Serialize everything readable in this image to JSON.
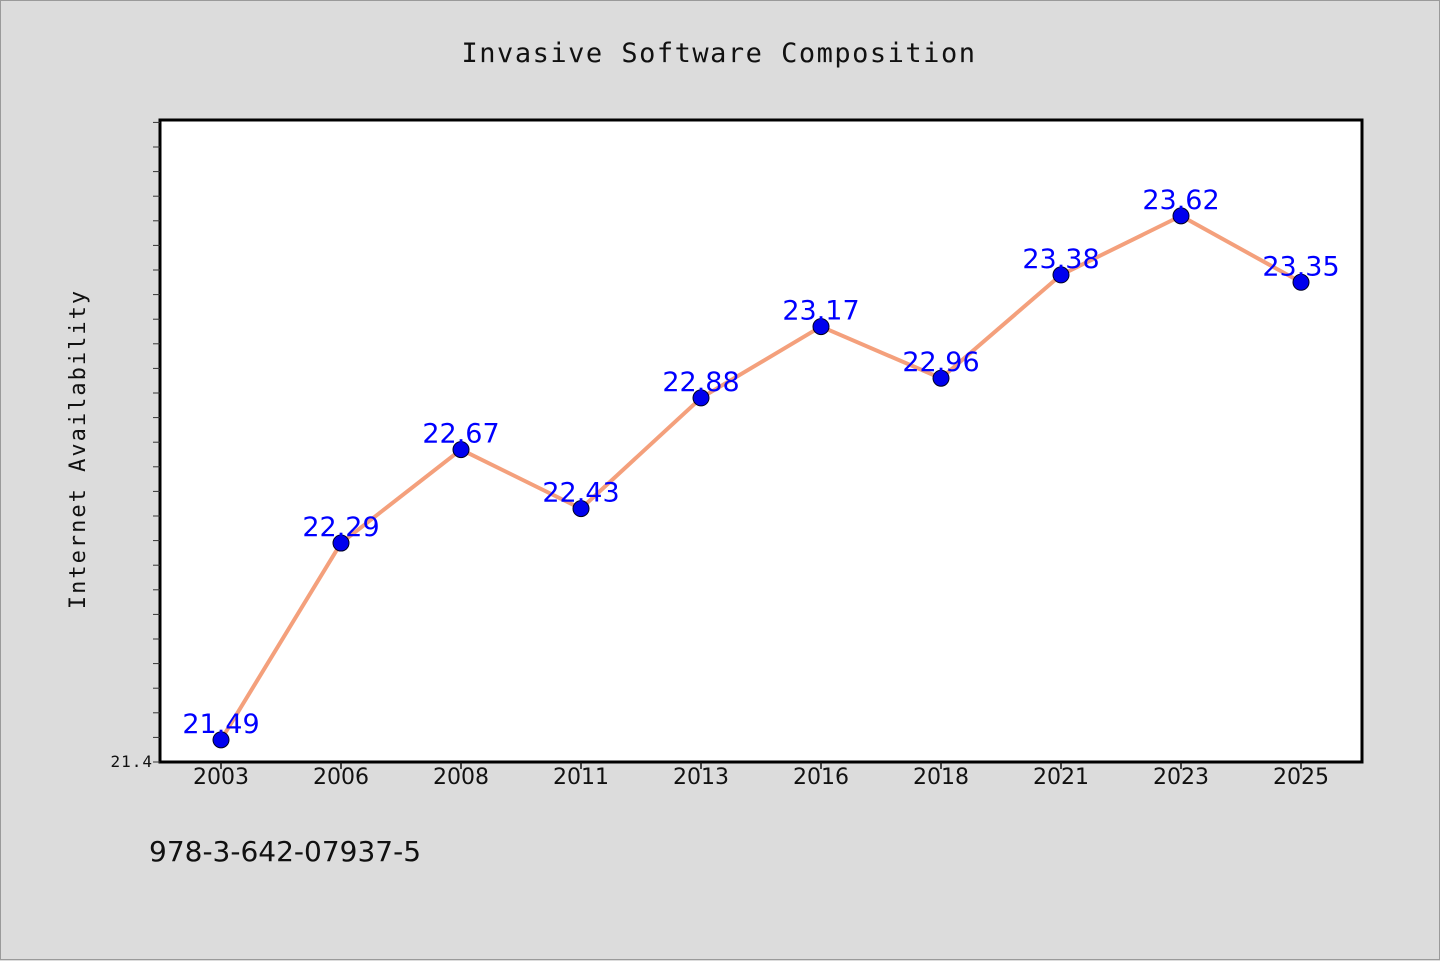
{
  "footnote": "978-3-642-07937-5",
  "colors": {
    "background": "#dcdcdc",
    "plot_background": "#ffffff",
    "line": "#f4a07c",
    "marker": "#0000ee",
    "data_label": "#0000ff"
  },
  "chart_data": {
    "type": "line",
    "title": "Invasive Software Composition",
    "xlabel": "",
    "ylabel": "Internet Availability",
    "categories": [
      "2003",
      "2006",
      "2008",
      "2011",
      "2013",
      "2016",
      "2018",
      "2021",
      "2023",
      "2025"
    ],
    "series": [
      {
        "values": [
          21.49,
          22.29,
          22.67,
          22.43,
          22.88,
          23.17,
          22.96,
          23.38,
          23.62,
          23.35
        ]
      }
    ],
    "data_labels": [
      "21.49",
      "22.29",
      "22.67",
      "22.43",
      "22.88",
      "23.17",
      "22.96",
      "23.38",
      "23.62",
      "23.35"
    ],
    "ylim": [
      21.4,
      24.0
    ],
    "y_tick_label": "21.4",
    "grid": false,
    "legend": "none"
  }
}
